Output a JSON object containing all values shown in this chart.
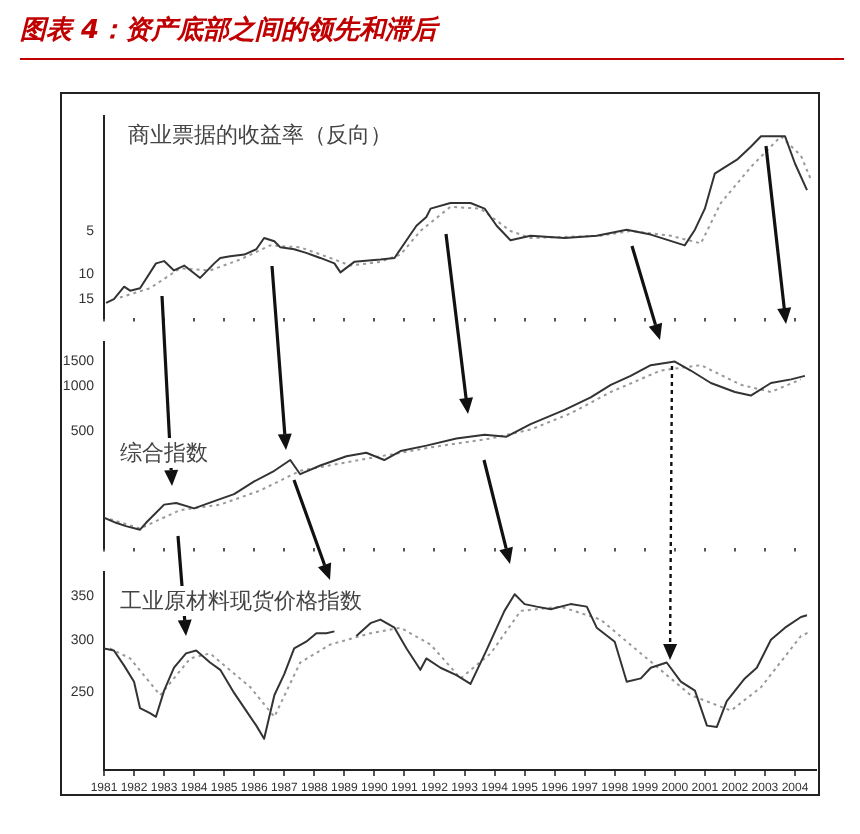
{
  "chart_data": [
    {
      "type": "line",
      "title": "图表 4：资产底部之间的领先和滞后",
      "annotations": [
        "商业票据的收益率（反向）"
      ],
      "log": "y",
      "tick_labels": "y",
      "xlim": [
        1981,
        2004.7
      ],
      "xticks": [
        1981,
        1982,
        1983,
        1984,
        1985,
        1986,
        1987,
        1988,
        1989,
        1990,
        1991,
        1992,
        1993,
        1994,
        1995,
        1996,
        1997,
        1998,
        1999,
        2000,
        2001,
        2002,
        2003,
        2004
      ],
      "ylim": [
        20,
        0.8
      ],
      "yticks": [
        5,
        10,
        15
      ],
      "series": [
        {
          "color": "#333333",
          "x": [
            1981.07,
            1981.33,
            1981.67,
            1981.87,
            1982.2,
            1982.73,
            1983.0,
            1983.33,
            1983.67,
            1984.2,
            1984.67,
            1984.87,
            1985.2,
            1985.67,
            1986.07,
            1986.33,
            1986.67,
            1986.87,
            1987.33,
            1987.73,
            1988.2,
            1988.67,
            1988.87,
            1989.33,
            1990.2,
            1990.67,
            1991.07,
            1991.4,
            1991.73,
            1991.87,
            1992.53,
            1993.2,
            1993.67,
            1994.07,
            1994.53,
            1995.2,
            1996.33,
            1997.4,
            1998.4,
            1999.2,
            2000.33,
            2000.67,
            2001.0,
            2001.33,
            2001.67,
            2002.07,
            2002.53,
            2002.87,
            2003.33,
            2003.67,
            2004.0,
            2004.4
          ],
          "values": [
            15.8,
            14.9,
            12.2,
            13.0,
            12.5,
            8.4,
            8.1,
            9.4,
            8.7,
            10.6,
            8.4,
            7.7,
            7.5,
            7.3,
            6.7,
            5.6,
            5.9,
            6.5,
            6.7,
            7.1,
            7.7,
            8.4,
            9.7,
            8.2,
            7.9,
            7.7,
            5.8,
            4.6,
            4.0,
            3.5,
            3.2,
            3.2,
            3.5,
            4.6,
            5.8,
            5.4,
            5.6,
            5.4,
            4.9,
            5.3,
            6.3,
            4.9,
            3.5,
            2.0,
            1.8,
            1.6,
            1.3,
            1.1,
            1.1,
            1.1,
            1.7,
            2.6
          ]
        },
        {
          "color": "#999999",
          "line_style": "dotted",
          "x": [
            1981.53,
            1982.53,
            1983.53,
            1984.53,
            1985.53,
            1986.53,
            1987.53,
            1988.53,
            1989.2,
            1990.2,
            1990.87,
            1991.53,
            1992.53,
            1993.53,
            1994.53,
            1995.2,
            1997.53,
            1998.53,
            1999.87,
            2000.87,
            2001.53,
            2002.53,
            2003.53,
            2004.2,
            2004.53
          ],
          "values": [
            14.5,
            12.5,
            9.1,
            9.4,
            7.9,
            6.3,
            6.5,
            7.7,
            8.7,
            8.2,
            7.3,
            5.0,
            3.4,
            3.5,
            5.0,
            5.6,
            5.4,
            5.0,
            5.4,
            6.1,
            3.2,
            1.8,
            1.1,
            1.5,
            2.2
          ]
        }
      ]
    },
    {
      "type": "line",
      "annotations": [
        "综合指数"
      ],
      "log": "y",
      "tick_labels": "y",
      "xlim": [
        1981,
        2004.7
      ],
      "xticks": [
        1981,
        1982,
        1983,
        1984,
        1985,
        1986,
        1987,
        1988,
        1989,
        1990,
        1991,
        1992,
        1993,
        1994,
        1995,
        1996,
        1997,
        1998,
        1999,
        2000,
        2001,
        2002,
        2003,
        2004
      ],
      "ylim": [
        80,
        2000
      ],
      "yticks": [
        500,
        1000,
        1500
      ],
      "series": [
        {
          "color": "#333333",
          "x": [
            1981.0,
            1981.4,
            1981.73,
            1982.2,
            1982.4,
            1983.0,
            1983.4,
            1984.0,
            1984.67,
            1985.33,
            1986.0,
            1986.67,
            1987.2,
            1987.53,
            1988.2,
            1989.07,
            1989.73,
            1990.33,
            1990.87,
            1991.73,
            1992.73,
            1993.67,
            1994.4,
            1995.2,
            1996.33,
            1997.2,
            1997.87,
            1998.53,
            1999.2,
            2000.0,
            2000.53,
            2001.2,
            2002.0,
            2002.53,
            2003.2,
            2003.87,
            2004.33
          ],
          "values": [
            128,
            118,
            112,
            106,
            118,
            157,
            161,
            148,
            166,
            185,
            226,
            267,
            316,
            253,
            290,
            335,
            354,
            316,
            364,
            396,
            443,
            469,
            456,
            555,
            694,
            845,
            1028,
            1183,
            1400,
            1480,
            1287,
            1058,
            919,
            869,
            1058,
            1120,
            1183
          ]
        },
        {
          "color": "#999999",
          "line_style": "dotted",
          "x": [
            1981.2,
            1982.2,
            1983.53,
            1984.87,
            1986.2,
            1987.53,
            1988.87,
            1990.2,
            1991.87,
            1993.87,
            1995.2,
            1996.53,
            1997.87,
            1999.53,
            2000.87,
            2002.2,
            2003.2,
            2004.2
          ],
          "values": [
            125,
            108,
            144,
            157,
            196,
            267,
            299,
            335,
            385,
            443,
            510,
            656,
            919,
            1287,
            1400,
            1028,
            919,
            1120
          ]
        }
      ]
    },
    {
      "type": "line",
      "annotations": [
        "工业原材料现货价格指数"
      ],
      "log": "y",
      "xlim": [
        1981,
        2004.7
      ],
      "xticks": [
        1981,
        1982,
        1983,
        1984,
        1985,
        1986,
        1987,
        1988,
        1989,
        1990,
        1991,
        1992,
        1993,
        1994,
        1995,
        1996,
        1997,
        1998,
        1999,
        2000,
        2001,
        2002,
        2003,
        2004
      ],
      "ylim": [
        190,
        380
      ],
      "yticks": [
        250,
        300,
        350
      ],
      "series": [
        {
          "color": "#333333",
          "x": [
            1981.0,
            1981.33,
            1981.67,
            1982.0,
            1982.2,
            1982.53,
            1982.73,
            1983.0,
            1983.33,
            1983.73,
            1984.07,
            1984.53,
            1984.87,
            1985.33,
            1985.73,
            1986.07,
            1986.33,
            1986.67,
            1987.0,
            1987.33,
            1987.73,
            1988.07,
            1988.4,
            1988.67,
            1989.0,
            1989.4,
            1989.87,
            1990.2,
            1990.67,
            1991.07,
            1991.53,
            1991.73,
            1992.2,
            1992.73,
            1993.2,
            1993.73,
            1994.33,
            1994.67,
            1995.0,
            1995.4,
            1995.87,
            1996.53,
            1997.07,
            1997.4,
            1998.0,
            1998.4,
            1998.87,
            1999.2,
            1999.73,
            2000.2,
            2000.67,
            2001.07,
            2001.4,
            2001.73,
            2002.33,
            2002.73,
            2003.2,
            2003.67,
            2004.2,
            2004.4
          ],
          "values": [
            291,
            289,
            274,
            259,
            236,
            232,
            229,
            251,
            272,
            286,
            289,
            277,
            270,
            249,
            234,
            222,
            212,
            247,
            266,
            291,
            298,
            307,
            307,
            309,
            null,
            304,
            318,
            322,
            313,
            291,
            270,
            281,
            272,
            265,
            257,
            289,
            332,
            352,
            340,
            337,
            334,
            340,
            337,
            313,
            298,
            259,
            262,
            272,
            277,
            259,
            251,
            222,
            221,
            242,
            262,
            272,
            300,
            313,
            325,
            327
          ]
        },
        {
          "color": "#999999",
          "line_style": "dotted",
          "x": [
            1981.2,
            1981.87,
            1982.87,
            1983.87,
            1984.53,
            1985.87,
            1986.67,
            1987.53,
            1988.53,
            1989.87,
            1990.87,
            1991.87,
            1992.87,
            1993.87,
            1994.87,
            1996.2,
            1997.53,
            1998.87,
            2000.53,
            2001.87,
            2002.87,
            2004.2,
            2004.53
          ],
          "values": [
            291,
            281,
            247,
            281,
            286,
            254,
            229,
            277,
            295,
            307,
            313,
            295,
            262,
            286,
            332,
            337,
            322,
            286,
            247,
            234,
            254,
            304,
            309
          ]
        }
      ]
    }
  ]
}
